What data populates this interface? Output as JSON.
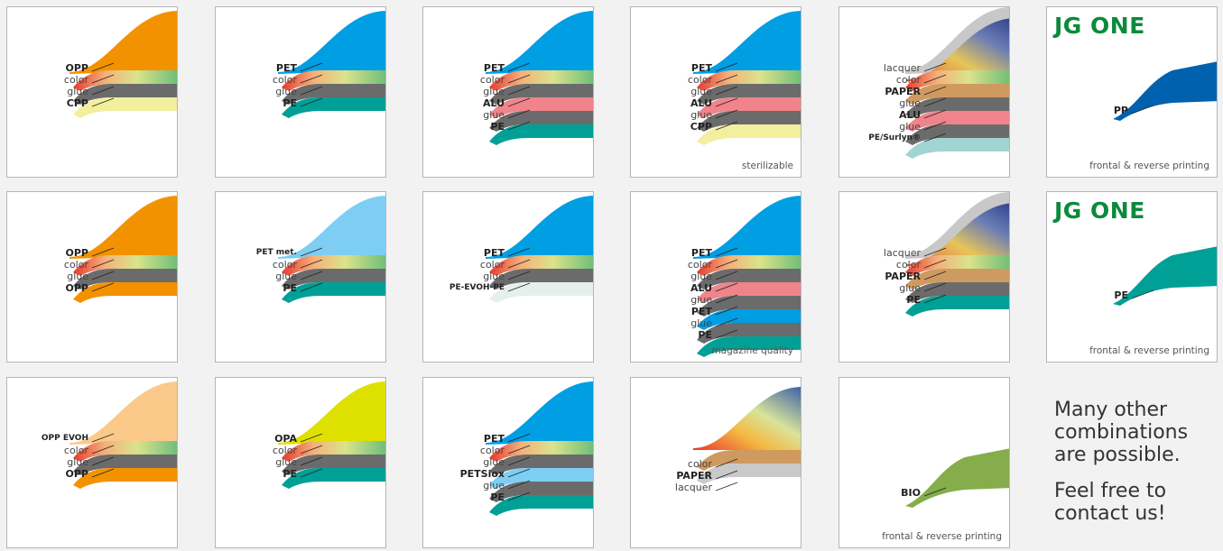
{
  "colors": {
    "orange": "#f39200",
    "lightorange": "#fbc98a",
    "blue": "#009ee3",
    "lightblue": "#7ecef4",
    "yellow": "#dee000",
    "green": "#7cbd74",
    "gray": "#6b6b6b",
    "pink": "#f0848a",
    "teal": "#00a096",
    "paleyellow": "#f2ef9f",
    "darkblue": "#0061ae",
    "paletteal": "#a2d4d3",
    "tan": "#cf9a60",
    "silver": "#c9c9c9",
    "bio": "#85ad4c",
    "palegray": "#e5f0ee"
  },
  "cards": [
    {
      "top": "orange",
      "layers": [
        [
          "green",
          "color"
        ],
        [
          "gray",
          "glue"
        ],
        [
          "paleyellow",
          "CPP"
        ]
      ],
      "labels": [
        {
          "t": "OPP",
          "b": true
        },
        {
          "t": "color"
        },
        {
          "t": "glue"
        },
        {
          "t": "CPP",
          "b": true
        }
      ],
      "note": ""
    },
    {
      "top": "blue",
      "layers": [
        [
          "green",
          "color"
        ],
        [
          "gray",
          "glue"
        ],
        [
          "teal",
          "PE"
        ]
      ],
      "labels": [
        {
          "t": "PET",
          "b": true
        },
        {
          "t": "color"
        },
        {
          "t": "glue"
        },
        {
          "t": "PE",
          "b": true
        }
      ],
      "note": ""
    },
    {
      "top": "blue",
      "layers": [
        [
          "green",
          "color"
        ],
        [
          "gray",
          "glue"
        ],
        [
          "pink",
          "ALU"
        ],
        [
          "gray",
          "glue"
        ],
        [
          "teal",
          "PE"
        ]
      ],
      "labels": [
        {
          "t": "PET",
          "b": true
        },
        {
          "t": "color"
        },
        {
          "t": "glue"
        },
        {
          "t": "ALU",
          "b": true
        },
        {
          "t": "glue"
        },
        {
          "t": "PE",
          "b": true
        }
      ],
      "note": ""
    },
    {
      "top": "blue",
      "layers": [
        [
          "green",
          "color"
        ],
        [
          "gray",
          "glue"
        ],
        [
          "pink",
          "ALU"
        ],
        [
          "gray",
          "glue"
        ],
        [
          "paleyellow",
          "CPP"
        ]
      ],
      "labels": [
        {
          "t": "PET",
          "b": true
        },
        {
          "t": "color"
        },
        {
          "t": "glue"
        },
        {
          "t": "ALU",
          "b": true
        },
        {
          "t": "glue"
        },
        {
          "t": "CPP",
          "b": true
        }
      ],
      "note": "sterilizable"
    },
    {
      "top": "silver",
      "layers": [
        [
          "green",
          "color"
        ],
        [
          "tan",
          "PAPER"
        ],
        [
          "gray",
          "glue"
        ],
        [
          "pink",
          "ALU"
        ],
        [
          "gray",
          "glue"
        ],
        [
          "paletteal",
          "PE/Surlyn"
        ]
      ],
      "labels": [
        {
          "t": "lacquer"
        },
        {
          "t": "color"
        },
        {
          "t": "PAPER",
          "b": true
        },
        {
          "t": "glue"
        },
        {
          "t": "ALU",
          "b": true
        },
        {
          "t": "glue"
        },
        {
          "t": "PE/Surlyn®",
          "b": true,
          "s": true
        }
      ],
      "note": ""
    },
    {
      "top": "orange",
      "layers": [
        [
          "green",
          "color"
        ],
        [
          "gray",
          "glue"
        ],
        [
          "orange",
          "OPP"
        ]
      ],
      "labels": [
        {
          "t": "OPP",
          "b": true
        },
        {
          "t": "color"
        },
        {
          "t": "glue"
        },
        {
          "t": "OPP",
          "b": true
        }
      ],
      "note": ""
    },
    {
      "top": "lightblue",
      "layers": [
        [
          "green",
          "color"
        ],
        [
          "gray",
          "glue"
        ],
        [
          "teal",
          "PE"
        ]
      ],
      "labels": [
        {
          "t": "PET met.",
          "b": true,
          "s": true
        },
        {
          "t": "color"
        },
        {
          "t": "glue"
        },
        {
          "t": "PE",
          "b": true
        }
      ],
      "note": ""
    },
    {
      "top": "blue",
      "layers": [
        [
          "green",
          "color"
        ],
        [
          "gray",
          "glue"
        ],
        [
          "palegray",
          "PE-EVOH-PE"
        ]
      ],
      "labels": [
        {
          "t": "PET",
          "b": true
        },
        {
          "t": "color"
        },
        {
          "t": "glue"
        },
        {
          "t": "PE-EVOH-PE",
          "b": true,
          "s": true
        }
      ],
      "note": ""
    },
    {
      "top": "blue",
      "layers": [
        [
          "green",
          "color"
        ],
        [
          "gray",
          "glue"
        ],
        [
          "pink",
          "ALU"
        ],
        [
          "gray",
          "glue"
        ],
        [
          "blue",
          "PET"
        ],
        [
          "gray",
          "glue"
        ],
        [
          "teal",
          "PE"
        ]
      ],
      "labels": [
        {
          "t": "PET",
          "b": true
        },
        {
          "t": "color"
        },
        {
          "t": "glue"
        },
        {
          "t": "ALU",
          "b": true
        },
        {
          "t": "glue"
        },
        {
          "t": "PET",
          "b": true
        },
        {
          "t": "glue"
        },
        {
          "t": "PE",
          "b": true
        }
      ],
      "note": "magazine quality"
    },
    {
      "top": "silver",
      "layers": [
        [
          "green",
          "color"
        ],
        [
          "tan",
          "PAPER"
        ],
        [
          "gray",
          "glue"
        ],
        [
          "teal",
          "PE"
        ]
      ],
      "labels": [
        {
          "t": "lacquer"
        },
        {
          "t": "color"
        },
        {
          "t": "PAPER",
          "b": true
        },
        {
          "t": "glue"
        },
        {
          "t": "PE",
          "b": true
        }
      ],
      "note": ""
    },
    {
      "top": "lightorange",
      "layers": [
        [
          "green",
          "color"
        ],
        [
          "gray",
          "glue"
        ],
        [
          "orange",
          "OPP"
        ]
      ],
      "labels": [
        {
          "t": "OPP EVOH",
          "b": true,
          "s": true
        },
        {
          "t": "color"
        },
        {
          "t": "glue"
        },
        {
          "t": "OPP",
          "b": true
        }
      ],
      "note": ""
    },
    {
      "top": "yellow",
      "layers": [
        [
          "green",
          "color"
        ],
        [
          "gray",
          "glue"
        ],
        [
          "teal",
          "PE"
        ]
      ],
      "labels": [
        {
          "t": "OPA",
          "b": true
        },
        {
          "t": "color"
        },
        {
          "t": "glue"
        },
        {
          "t": "PE",
          "b": true
        }
      ],
      "note": ""
    },
    {
      "top": "blue",
      "layers": [
        [
          "green",
          "color"
        ],
        [
          "gray",
          "glue"
        ],
        [
          "lightblue",
          "PETSiox"
        ],
        [
          "gray",
          "glue"
        ],
        [
          "teal",
          "PE"
        ]
      ],
      "labels": [
        {
          "t": "PET",
          "b": true
        },
        {
          "t": "color"
        },
        {
          "t": "glue"
        },
        {
          "t": "PETSiox",
          "b": true
        },
        {
          "t": "glue"
        },
        {
          "t": "PE",
          "b": true
        }
      ],
      "note": ""
    },
    {
      "top": "paper",
      "layers": [
        [
          "tan",
          "PAPER"
        ],
        [
          "silver",
          "lacquer"
        ]
      ],
      "labels": [
        {
          "t": "color"
        },
        {
          "t": "PAPER",
          "b": true
        },
        {
          "t": "lacquer"
        }
      ],
      "note": ""
    },
    {
      "top": "bio",
      "layers": [],
      "labels": [
        {
          "t": "BIO",
          "b": true
        }
      ],
      "note": "frontal & reverse printing"
    },
    {
      "top": "darkblue",
      "layers": [],
      "logo": "JG ONE",
      "labels": [
        {
          "t": "PP",
          "b": true
        }
      ],
      "note": "frontal & reverse printing"
    },
    {
      "top": "teal",
      "layers": [],
      "logo": "JG ONE",
      "labels": [
        {
          "t": "PE",
          "b": true
        }
      ],
      "note": "frontal & reverse printing"
    }
  ],
  "message": {
    "line1": "Many other",
    "line2": "combinations",
    "line3": "are possible.",
    "line4": "Feel free to",
    "line5": "contact us!"
  }
}
